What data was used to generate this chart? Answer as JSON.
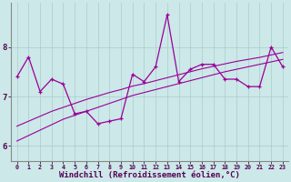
{
  "xlabel": "Windchill (Refroidissement éolien,°C)",
  "bg_color": "#cce8e8",
  "line_color": "#990099",
  "grid_color": "#aacccc",
  "x_data": [
    0,
    1,
    2,
    3,
    4,
    5,
    6,
    7,
    8,
    9,
    10,
    11,
    12,
    13,
    14,
    15,
    16,
    17,
    18,
    19,
    20,
    21,
    22,
    23
  ],
  "y_main": [
    7.4,
    7.8,
    7.1,
    7.35,
    7.25,
    6.65,
    6.7,
    6.45,
    6.5,
    6.55,
    7.45,
    7.3,
    7.6,
    8.65,
    7.3,
    7.55,
    7.65,
    7.65,
    7.35,
    7.35,
    7.2,
    7.2,
    8.0,
    7.6
  ],
  "y_reg1": [
    6.1,
    6.21,
    6.32,
    6.43,
    6.54,
    6.62,
    6.7,
    6.78,
    6.86,
    6.94,
    7.02,
    7.08,
    7.14,
    7.2,
    7.26,
    7.32,
    7.38,
    7.44,
    7.5,
    7.55,
    7.6,
    7.65,
    7.7,
    7.75
  ],
  "y_reg2": [
    6.4,
    6.5,
    6.6,
    6.7,
    6.78,
    6.86,
    6.94,
    7.01,
    7.08,
    7.14,
    7.21,
    7.26,
    7.32,
    7.38,
    7.44,
    7.5,
    7.56,
    7.61,
    7.66,
    7.71,
    7.75,
    7.79,
    7.84,
    7.89
  ],
  "xlim": [
    -0.5,
    23.5
  ],
  "ylim": [
    5.7,
    8.9
  ],
  "xticks": [
    0,
    1,
    2,
    3,
    4,
    5,
    6,
    7,
    8,
    9,
    10,
    11,
    12,
    13,
    14,
    15,
    16,
    17,
    18,
    19,
    20,
    21,
    22,
    23
  ],
  "yticks": [
    6,
    7,
    8
  ],
  "fontsize_xlabel": 6.5,
  "fontsize_ticks": 6.5
}
